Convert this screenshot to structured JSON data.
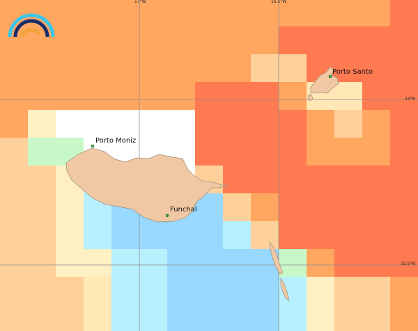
{
  "map": {
    "graticule": {
      "longitudes": [
        "17°W",
        "16.5°W"
      ],
      "latitudes": [
        "33°N",
        "32.5°N"
      ]
    },
    "places": [
      {
        "name": "Porto Santo"
      },
      {
        "name": "Porto Moniz"
      },
      {
        "name": "Funchal"
      }
    ],
    "colors": {
      "land": "#f0c9a4",
      "land_outline": "#9c8a78",
      "graticule": "#8c8c8c",
      "town_marker": "#3aa53a",
      "no_data": "#ffffff",
      "levels": [
        "#b7f0ff",
        "#9ad9ff",
        "#c8f8c8",
        "#fff0c4",
        "#ffe7b6",
        "#ffd19a",
        "#ffa660",
        "#ff7a50"
      ]
    },
    "logo": {
      "name": "rainbow-arc-logo",
      "colors": [
        "#3cc6ea",
        "#1a2d6b",
        "#f2a43a"
      ]
    }
  }
}
